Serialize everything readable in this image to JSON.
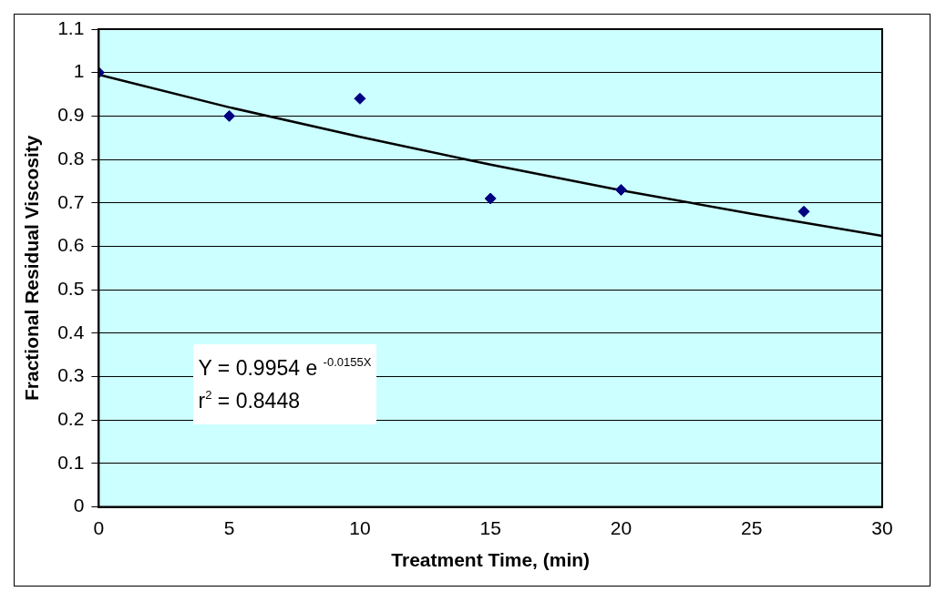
{
  "chart_data": {
    "type": "scatter",
    "xlabel": "Treatment Time, (min)",
    "ylabel": "Fractional Residual Viscosity",
    "xlim": [
      0,
      30
    ],
    "xticks": [
      0,
      5,
      10,
      15,
      20,
      25,
      30
    ],
    "ylim": [
      0,
      1.1
    ],
    "yticks": [
      0,
      0.1,
      0.2,
      0.3,
      0.4,
      0.5,
      0.6,
      0.7,
      0.8,
      0.9,
      1,
      1.1
    ],
    "grid": "y",
    "legend": false,
    "series": [
      {
        "color": "#000080",
        "marker": "diamond",
        "x": [
          0,
          5,
          10,
          15,
          20,
          27
        ],
        "values": [
          1.0,
          0.9,
          0.94,
          0.71,
          0.73,
          0.68
        ]
      },
      {
        "type": "line",
        "color": "#000000",
        "marker": "none",
        "line_style": "solid",
        "x": [
          0,
          5,
          10,
          15,
          20,
          25,
          30
        ],
        "values": [
          0.995,
          0.92,
          0.852,
          0.788,
          0.729,
          0.675,
          0.624
        ]
      }
    ],
    "annotations": [
      "Y = 0.9954 e $^{-0.0155X}$",
      "r$^{2}$ = 0.8448"
    ]
  }
}
